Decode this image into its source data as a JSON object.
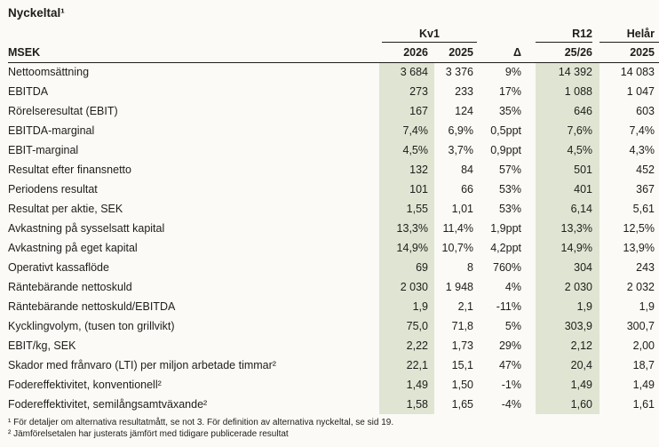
{
  "title": "Nyckeltal¹",
  "colors": {
    "highlight": "#dfe5d2",
    "background": "#fbfaf6",
    "text": "#1e1d1b"
  },
  "table": {
    "unit_label": "MSEK",
    "groups": {
      "kv1": "Kv1",
      "r12": "R12",
      "helar": "Helår"
    },
    "columns": [
      "2026",
      "2025",
      "Δ",
      "25/26",
      "2025"
    ],
    "rows": [
      {
        "label": "Nettoomsättning",
        "values": [
          "3 684",
          "3 376",
          "9%",
          "14 392",
          "14 083"
        ]
      },
      {
        "label": "EBITDA",
        "values": [
          "273",
          "233",
          "17%",
          "1 088",
          "1 047"
        ]
      },
      {
        "label": "Rörelseresultat (EBIT)",
        "values": [
          "167",
          "124",
          "35%",
          "646",
          "603"
        ]
      },
      {
        "label": "EBITDA-marginal",
        "values": [
          "7,4%",
          "6,9%",
          "0,5ppt",
          "7,6%",
          "7,4%"
        ]
      },
      {
        "label": "EBIT-marginal",
        "values": [
          "4,5%",
          "3,7%",
          "0,9ppt",
          "4,5%",
          "4,3%"
        ]
      },
      {
        "label": "Resultat efter finansnetto",
        "values": [
          "132",
          "84",
          "57%",
          "501",
          "452"
        ]
      },
      {
        "label": "Periodens resultat",
        "values": [
          "101",
          "66",
          "53%",
          "401",
          "367"
        ]
      },
      {
        "label": "Resultat per aktie, SEK",
        "values": [
          "1,55",
          "1,01",
          "53%",
          "6,14",
          "5,61"
        ]
      },
      {
        "label": "Avkastning på sysselsatt kapital",
        "values": [
          "13,3%",
          "11,4%",
          "1,9ppt",
          "13,3%",
          "12,5%"
        ]
      },
      {
        "label": "Avkastning på eget kapital",
        "values": [
          "14,9%",
          "10,7%",
          "4,2ppt",
          "14,9%",
          "13,9%"
        ]
      },
      {
        "label": "Operativt kassaflöde",
        "values": [
          "69",
          "8",
          "760%",
          "304",
          "243"
        ]
      },
      {
        "label": "Räntebärande nettoskuld",
        "values": [
          "2 030",
          "1 948",
          "4%",
          "2 030",
          "2 032"
        ]
      },
      {
        "label": "Räntebärande nettoskuld/EBITDA",
        "values": [
          "1,9",
          "2,1",
          "-11%",
          "1,9",
          "1,9"
        ]
      },
      {
        "label": "Kycklingvolym, (tusen ton grillvikt)",
        "values": [
          "75,0",
          "71,8",
          "5%",
          "303,9",
          "300,7"
        ]
      },
      {
        "label": "EBIT/kg, SEK",
        "values": [
          "2,22",
          "1,73",
          "29%",
          "2,12",
          "2,00"
        ]
      },
      {
        "label": "Skador med frånvaro (LTI) per miljon arbetade timmar²",
        "values": [
          "22,1",
          "15,1",
          "47%",
          "20,4",
          "18,7"
        ]
      },
      {
        "label": "Fodereffektivitet, konventionell²",
        "values": [
          "1,49",
          "1,50",
          "-1%",
          "1,49",
          "1,49"
        ]
      },
      {
        "label": "Fodereffektivitet, semilångsamtväxande²",
        "values": [
          "1,58",
          "1,65",
          "-4%",
          "1,60",
          "1,61"
        ]
      }
    ]
  },
  "footnotes": [
    "¹ För detaljer om alternativa resultatmått, se not 3. För definition av alternativa nyckeltal, se sid 19.",
    "² Jämförelsetalen har justerats jämfört med tidigare publicerade resultat"
  ]
}
